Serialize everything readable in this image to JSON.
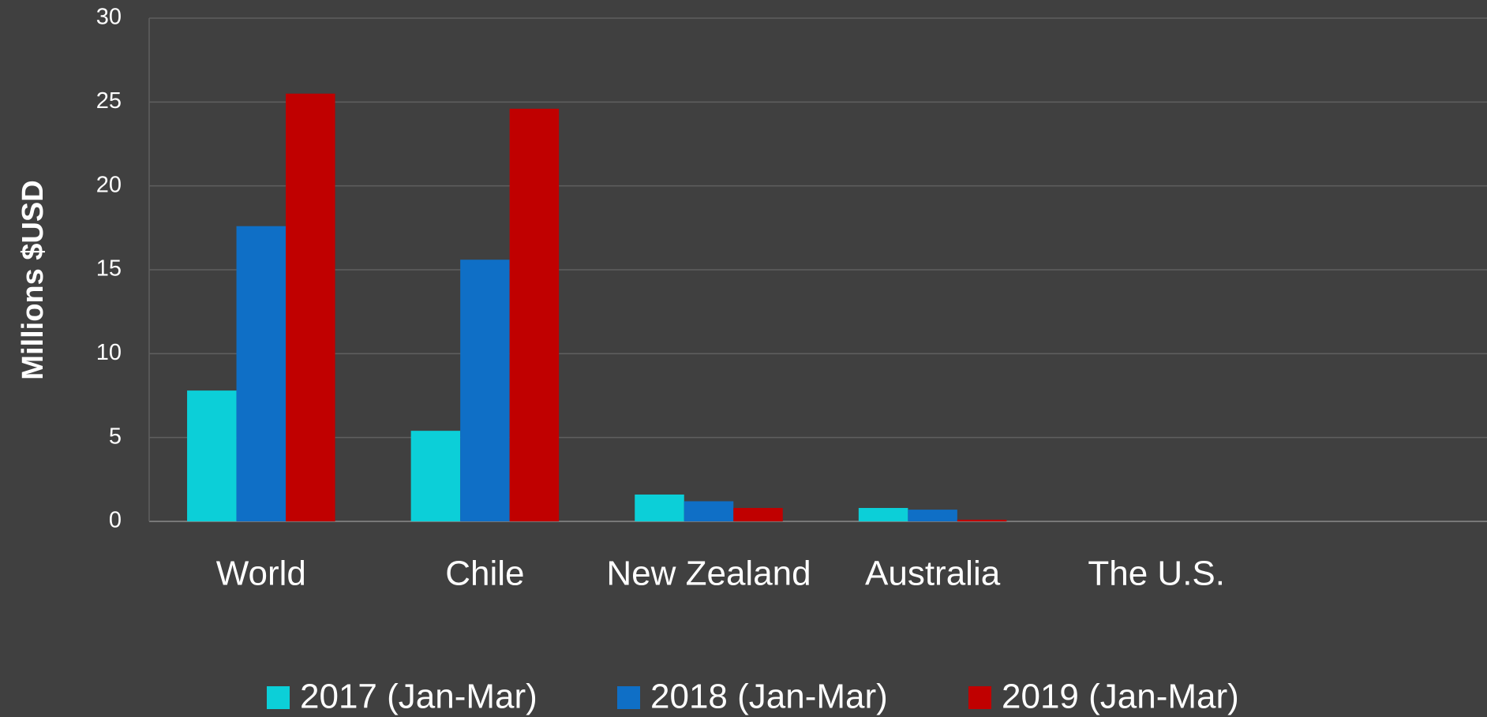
{
  "chart_data": {
    "type": "bar",
    "y_label": "Millions $USD",
    "categories": [
      "World",
      "Chile",
      "New Zealand",
      "Australia",
      "The U.S."
    ],
    "series": [
      {
        "name": "2017 (Jan-Mar)",
        "color": "#0ccfd8",
        "values": [
          7.8,
          5.4,
          1.6,
          0.8,
          0
        ]
      },
      {
        "name": "2018 (Jan-Mar)",
        "color": "#0f6fc6",
        "values": [
          17.6,
          15.6,
          1.2,
          0.7,
          0
        ]
      },
      {
        "name": "2019 (Jan-Mar)",
        "color": "#c00000",
        "values": [
          25.5,
          24.6,
          0.8,
          0.1,
          0
        ]
      }
    ],
    "ylim": [
      0,
      30
    ],
    "yticks": [
      0,
      5,
      10,
      15,
      20,
      25,
      30
    ],
    "grid": true,
    "legend": "bottom"
  }
}
